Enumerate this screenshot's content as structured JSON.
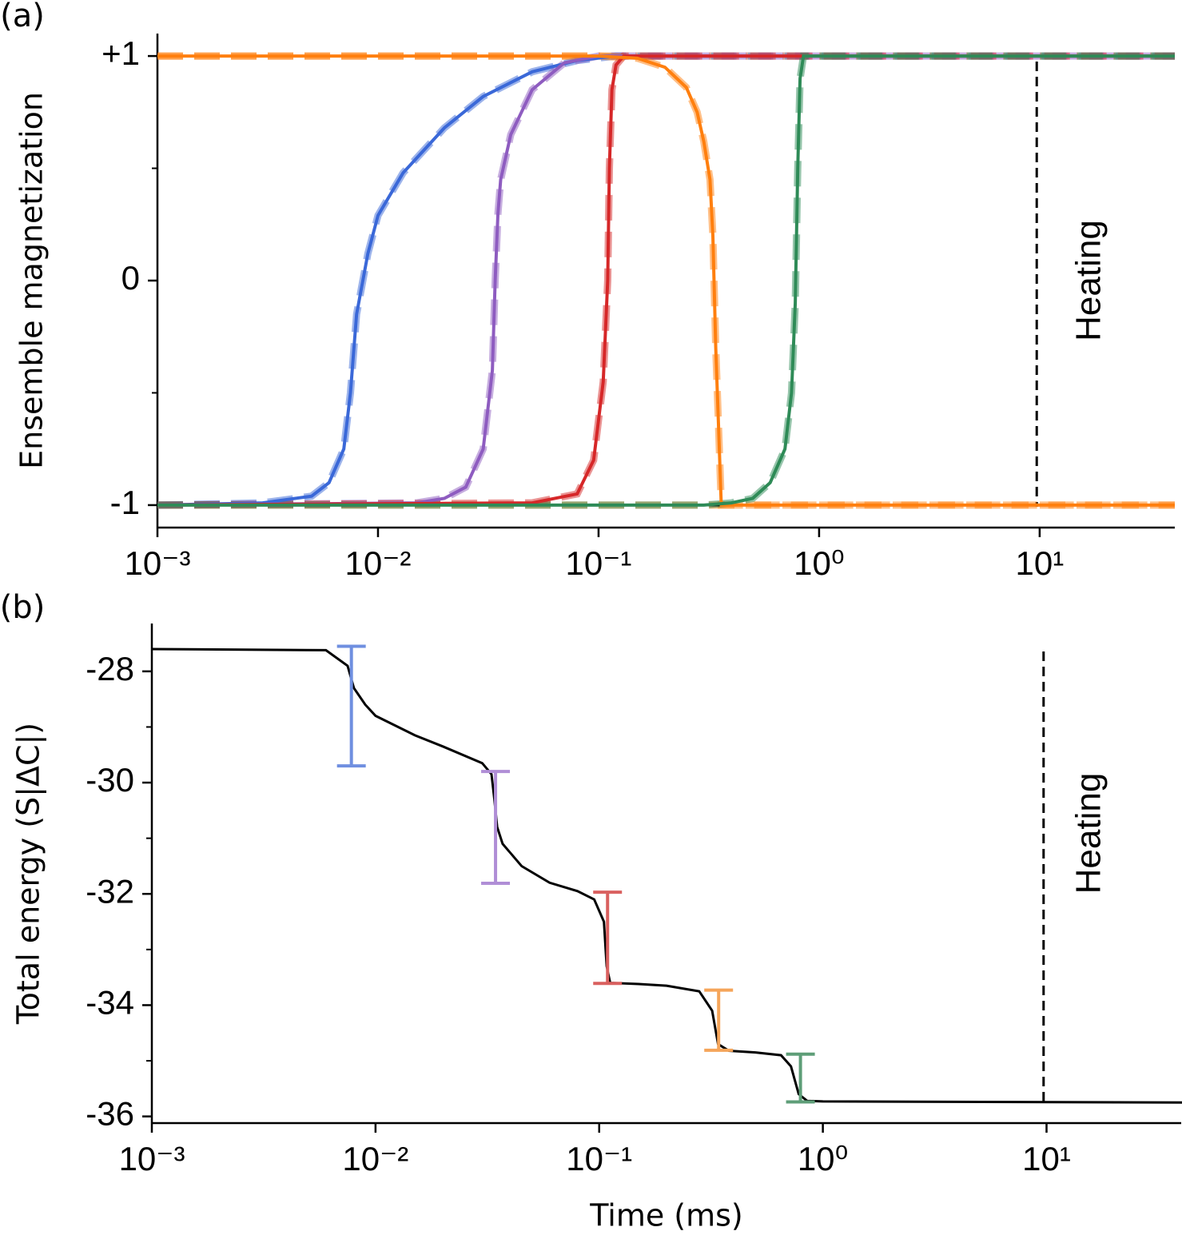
{
  "chart_data": [
    {
      "type": "line",
      "panel_label": "(a)",
      "y_label": "Ensemble magnetization",
      "annotation": "Heating",
      "xscale": "log",
      "xlim": [
        0.001,
        41
      ],
      "ylim": [
        -1.1,
        1.1
      ],
      "xticks": [
        {
          "value": 0.001,
          "label": "10⁻³"
        },
        {
          "value": 0.01,
          "label": "10⁻²"
        },
        {
          "value": 0.1,
          "label": "10⁻¹"
        },
        {
          "value": 1,
          "label": "10⁰"
        },
        {
          "value": 10,
          "label": "10¹"
        }
      ],
      "yticks": [
        {
          "value": -1,
          "label": "-1"
        },
        0,
        {
          "value": 1,
          "label": "+1"
        }
      ],
      "yminorticks": [
        -0.5,
        0.5
      ],
      "vline": 9.7,
      "series": [
        {
          "color": "#000000",
          "dashed": false,
          "x": [
            0.001,
            41
          ],
          "values": [
            1,
            1
          ]
        },
        {
          "color": "#000000",
          "dashed": false,
          "x": [
            0.001,
            41
          ],
          "values": [
            -1,
            -1
          ]
        },
        {
          "color": "#ff7f0e",
          "dashed": true,
          "x": [
            0.001,
            41
          ],
          "values": [
            1,
            1
          ]
        },
        {
          "color": "#ff7f0e",
          "dashed": true,
          "x": [
            0.001,
            41
          ],
          "values": [
            -1,
            -1
          ]
        },
        {
          "color": "#3a68d8",
          "dashed": true,
          "x": [
            0.001,
            0.003,
            0.005,
            0.006,
            0.007,
            0.0075,
            0.008,
            0.009,
            0.01,
            0.013,
            0.02,
            0.03,
            0.05,
            0.08,
            0.12,
            41
          ],
          "values": [
            -1,
            -0.99,
            -0.96,
            -0.9,
            -0.75,
            -0.5,
            -0.15,
            0.12,
            0.29,
            0.48,
            0.68,
            0.82,
            0.93,
            0.98,
            1,
            1
          ]
        },
        {
          "color": "#8e5cc0",
          "dashed": true,
          "x": [
            0.001,
            0.015,
            0.02,
            0.025,
            0.03,
            0.033,
            0.034,
            0.035,
            0.036,
            0.04,
            0.05,
            0.07,
            0.1,
            41
          ],
          "values": [
            -1,
            -0.99,
            -0.97,
            -0.92,
            -0.75,
            -0.4,
            0,
            0.3,
            0.45,
            0.65,
            0.85,
            0.97,
            1,
            1
          ]
        },
        {
          "color": "#d62728",
          "dashed": true,
          "x": [
            0.001,
            0.05,
            0.08,
            0.095,
            0.105,
            0.11,
            0.112,
            0.115,
            0.12,
            0.13,
            41
          ],
          "values": [
            -1,
            -0.99,
            -0.95,
            -0.8,
            -0.45,
            0,
            0.5,
            0.85,
            0.96,
            1,
            1
          ]
        },
        {
          "color": "#ff7f0e",
          "dashed": true,
          "x": [
            0.001,
            0.1,
            0.15,
            0.2,
            0.25,
            0.28,
            0.3,
            0.32,
            0.33,
            0.34,
            0.35,
            0.36,
            41
          ],
          "values": [
            1,
            1,
            0.99,
            0.95,
            0.86,
            0.75,
            0.62,
            0.45,
            0.2,
            -0.3,
            -0.65,
            -1,
            -1
          ]
        },
        {
          "color": "#2e8b57",
          "dashed": true,
          "x": [
            0.001,
            0.3,
            0.4,
            0.5,
            0.6,
            0.7,
            0.75,
            0.78,
            0.8,
            0.82,
            0.85,
            41
          ],
          "values": [
            -1,
            -1,
            -0.99,
            -0.97,
            -0.9,
            -0.75,
            -0.5,
            -0.1,
            0.5,
            0.9,
            1,
            1
          ]
        }
      ]
    },
    {
      "type": "line",
      "panel_label": "(b)",
      "y_label": "Total energy (S|ΔC|)",
      "x_label": "Time (ms)",
      "annotation": "Heating",
      "xscale": "log",
      "xlim": [
        0.001,
        40
      ],
      "ylim": [
        -36.12,
        -27.14
      ],
      "xticks": [
        {
          "value": 0.001,
          "label": "10⁻³"
        },
        {
          "value": 0.01,
          "label": "10⁻²"
        },
        {
          "value": 0.1,
          "label": "10⁻¹"
        },
        {
          "value": 1,
          "label": "10⁰"
        },
        {
          "value": 10,
          "label": "10¹"
        }
      ],
      "yticks": [
        -36,
        -34,
        -32,
        -30,
        -28
      ],
      "yminorticks": [
        -35,
        -33,
        -31,
        -29
      ],
      "vline": 9.7,
      "series": [
        {
          "color": "#000000",
          "dashed": false,
          "x": [
            0.001,
            0.006,
            0.0075,
            0.008,
            0.009,
            0.01,
            0.015,
            0.02,
            0.03,
            0.033,
            0.034,
            0.035,
            0.037,
            0.045,
            0.06,
            0.08,
            0.095,
            0.105,
            0.108,
            0.112,
            0.15,
            0.2,
            0.28,
            0.32,
            0.34,
            0.38,
            0.5,
            0.65,
            0.72,
            0.78,
            0.85,
            1,
            41
          ],
          "values": [
            -27.6,
            -27.62,
            -27.9,
            -28.3,
            -28.6,
            -28.8,
            -29.15,
            -29.35,
            -29.65,
            -29.85,
            -30.3,
            -30.8,
            -31.1,
            -31.5,
            -31.8,
            -31.95,
            -32.1,
            -32.5,
            -33.3,
            -33.6,
            -33.62,
            -33.65,
            -33.75,
            -34.1,
            -34.7,
            -34.82,
            -34.85,
            -34.9,
            -35.1,
            -35.6,
            -35.72,
            -35.73,
            -35.75
          ]
        }
      ],
      "errorbars": [
        {
          "color": "#6f8fe0",
          "x": 0.0078,
          "low": -29.7,
          "high": -27.55
        },
        {
          "color": "#b08ed6",
          "x": 0.0344,
          "low": -31.81,
          "high": -29.8
        },
        {
          "color": "#d9605f",
          "x": 0.109,
          "low": -33.61,
          "high": -31.97
        },
        {
          "color": "#f5a55a",
          "x": 0.342,
          "low": -34.81,
          "high": -33.73
        },
        {
          "color": "#5e9e78",
          "x": 0.794,
          "low": -35.74,
          "high": -34.88
        }
      ]
    }
  ]
}
